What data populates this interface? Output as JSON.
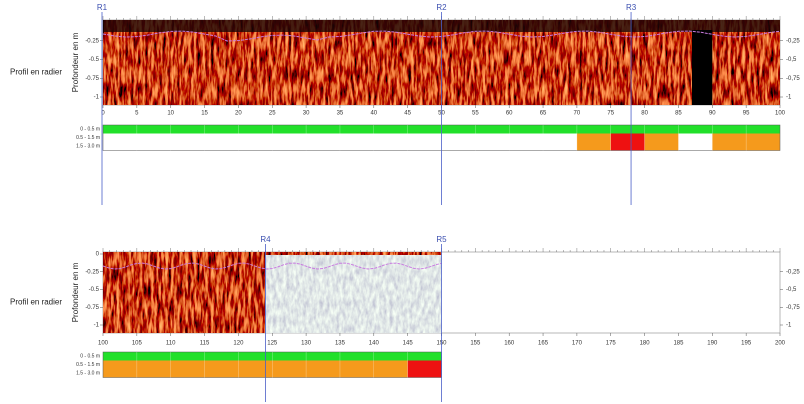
{
  "panels": [
    {
      "side_label": "Profil en radier",
      "y_axis_label": "Profondeur en m",
      "left_ticks": [
        "-0.25",
        "-0.5",
        "-0.75",
        "-1"
      ],
      "right_ticks": [
        "-0,25",
        "-0,5",
        "-0,75",
        "-1"
      ],
      "x_ticks": [
        "0",
        "5",
        "10",
        "15",
        "20",
        "25",
        "30",
        "35",
        "40",
        "45",
        "50",
        "55",
        "60",
        "65",
        "70",
        "75",
        "80",
        "85",
        "90",
        "95",
        "100"
      ],
      "markers": [
        "R1",
        "R2",
        "R3"
      ],
      "bar_labels": [
        "0 - 0.5 m",
        "0.5 - 1.5 m",
        "1.5 - 3.0 m"
      ]
    },
    {
      "side_label": "Profil en radier",
      "y_axis_label": "Profondeur en m",
      "left_ticks": [
        "0",
        "-0.25",
        "-0.5",
        "-0.75",
        "-1"
      ],
      "right_ticks": [
        "-0,25",
        "-0,5",
        "-0,75",
        "-1"
      ],
      "x_ticks": [
        "100",
        "105",
        "110",
        "115",
        "120",
        "125",
        "130",
        "135",
        "140",
        "145",
        "150",
        "155",
        "160",
        "165",
        "170",
        "175",
        "180",
        "185",
        "190",
        "195",
        "200"
      ],
      "markers": [
        "R4",
        "R5"
      ],
      "bar_labels": [
        "0 - 0.5 m",
        "0.5 - 1.5 m",
        "1.5 - 3.0 m"
      ]
    }
  ]
}
